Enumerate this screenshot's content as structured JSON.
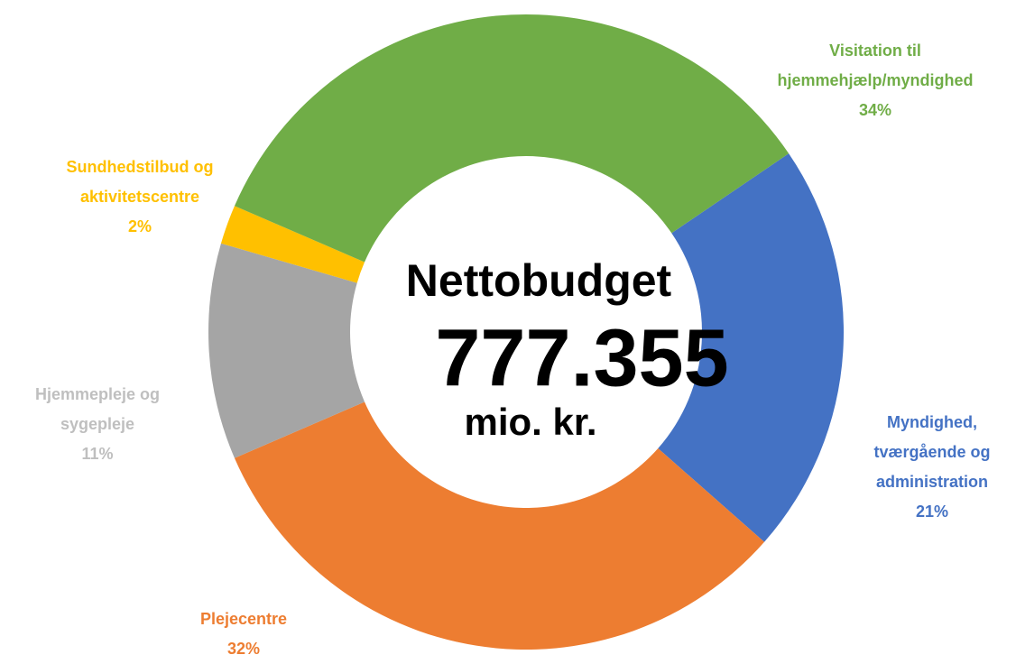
{
  "chart_data": {
    "type": "donut",
    "categories": [
      "Myndighed, tværgående og administration",
      "Plejecentre",
      "Hjemmepleje og sygepleje",
      "Sundhedstilbud og aktivitetscentre",
      "Visitation til hjemmehjælp/myndighed"
    ],
    "values": [
      21,
      32,
      11,
      2,
      34
    ],
    "value_labels": [
      "21%",
      "32%",
      "11%",
      "2%",
      "34%"
    ],
    "colors": [
      "#4472c4",
      "#ed7d31",
      "#a5a5a5",
      "#ffc000",
      "#70ad47"
    ],
    "center_text": {
      "title": "Nettobudget",
      "amount": "777.355",
      "unit": "mio. kr."
    }
  }
}
